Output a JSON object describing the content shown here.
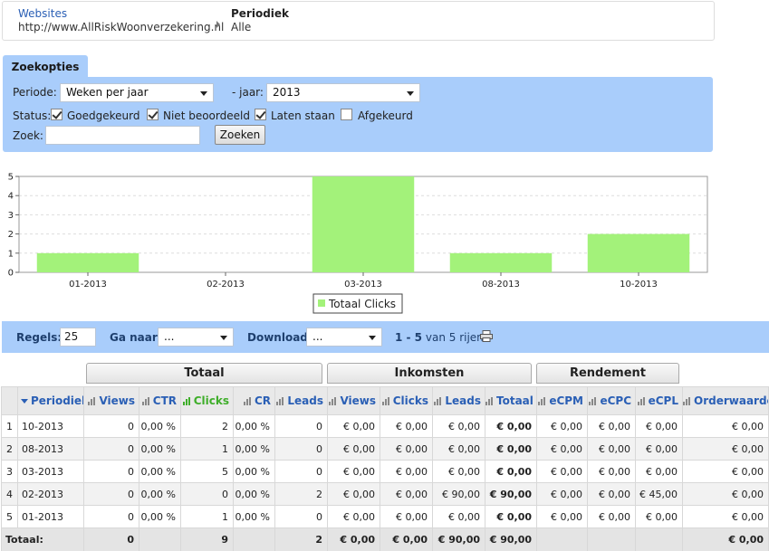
{
  "breadcrumb": {
    "websites_label": "Websites",
    "websites_value": "http://www.AllRiskWoonverzekering.nl",
    "periodiek_label": "Periodiek",
    "periodiek_value": "Alle"
  },
  "search": {
    "tab_label": "Zoekopties",
    "periode_label": "Periode:",
    "periode_value": "Weken per jaar",
    "jaar_label": "- jaar:",
    "jaar_value": "2013",
    "status_label": "Status:",
    "statuses": [
      {
        "label": "Goedgekeurd",
        "checked": true
      },
      {
        "label": "Niet beoordeeld",
        "checked": true
      },
      {
        "label": "Laten staan",
        "checked": true
      },
      {
        "label": "Afgekeurd",
        "checked": false
      }
    ],
    "zoek_label": "Zoek:",
    "zoek_value": "",
    "zoeken_button": "Zoeken"
  },
  "chart_data": {
    "type": "bar",
    "categories": [
      "01-2013",
      "02-2013",
      "03-2013",
      "08-2013",
      "10-2013"
    ],
    "series": [
      {
        "name": "Totaal Clicks",
        "values": [
          1,
          0,
          5,
          1,
          2
        ],
        "color": "#a3f27a"
      }
    ],
    "yticks": [
      "0",
      "1",
      "2",
      "3",
      "4",
      "5"
    ],
    "ylim": [
      0,
      5
    ],
    "legend": "bottom-center"
  },
  "pager": {
    "regels_label": "Regels:",
    "regels_value": "25",
    "ganaar_label": "Ga naar:",
    "ganaar_value": "...",
    "download_label": "Download:",
    "download_value": "...",
    "range": "1 - 5",
    "of_text": "van 5 rijen"
  },
  "groups": {
    "totaal": "Totaal",
    "inkomsten": "Inkomsten",
    "rendement": "Rendement"
  },
  "table": {
    "columns": [
      "Periodiek",
      "Views",
      "CTR",
      "Clicks",
      "CR",
      "Leads",
      "Views",
      "Clicks",
      "Leads",
      "Totaal",
      "eCPM",
      "eCPC",
      "eCPL",
      "Orderwaarde"
    ],
    "rows": [
      [
        "1",
        "10-2013",
        "0",
        "0,00 %",
        "2",
        "0,00 %",
        "0",
        "€ 0,00",
        "€ 0,00",
        "€ 0,00",
        "€ 0,00",
        "€ 0,00",
        "€ 0,00",
        "€ 0,00",
        "€ 0,00"
      ],
      [
        "2",
        "08-2013",
        "0",
        "0,00 %",
        "1",
        "0,00 %",
        "0",
        "€ 0,00",
        "€ 0,00",
        "€ 0,00",
        "€ 0,00",
        "€ 0,00",
        "€ 0,00",
        "€ 0,00",
        "€ 0,00"
      ],
      [
        "3",
        "03-2013",
        "0",
        "0,00 %",
        "5",
        "0,00 %",
        "0",
        "€ 0,00",
        "€ 0,00",
        "€ 0,00",
        "€ 0,00",
        "€ 0,00",
        "€ 0,00",
        "€ 0,00",
        "€ 0,00"
      ],
      [
        "4",
        "02-2013",
        "0",
        "0,00 %",
        "0",
        "0,00 %",
        "2",
        "€ 0,00",
        "€ 0,00",
        "€ 90,00",
        "€ 90,00",
        "€ 0,00",
        "€ 0,00",
        "€ 45,00",
        "€ 0,00"
      ],
      [
        "5",
        "01-2013",
        "0",
        "0,00 %",
        "1",
        "0,00 %",
        "0",
        "€ 0,00",
        "€ 0,00",
        "€ 0,00",
        "€ 0,00",
        "€ 0,00",
        "€ 0,00",
        "€ 0,00",
        "€ 0,00"
      ]
    ],
    "totals": [
      "Totaal:",
      "0",
      "",
      "9",
      "",
      "2",
      "€ 0,00",
      "€ 0,00",
      "€ 90,00",
      "€ 90,00",
      "",
      "",
      "",
      "€ 0,00"
    ]
  }
}
